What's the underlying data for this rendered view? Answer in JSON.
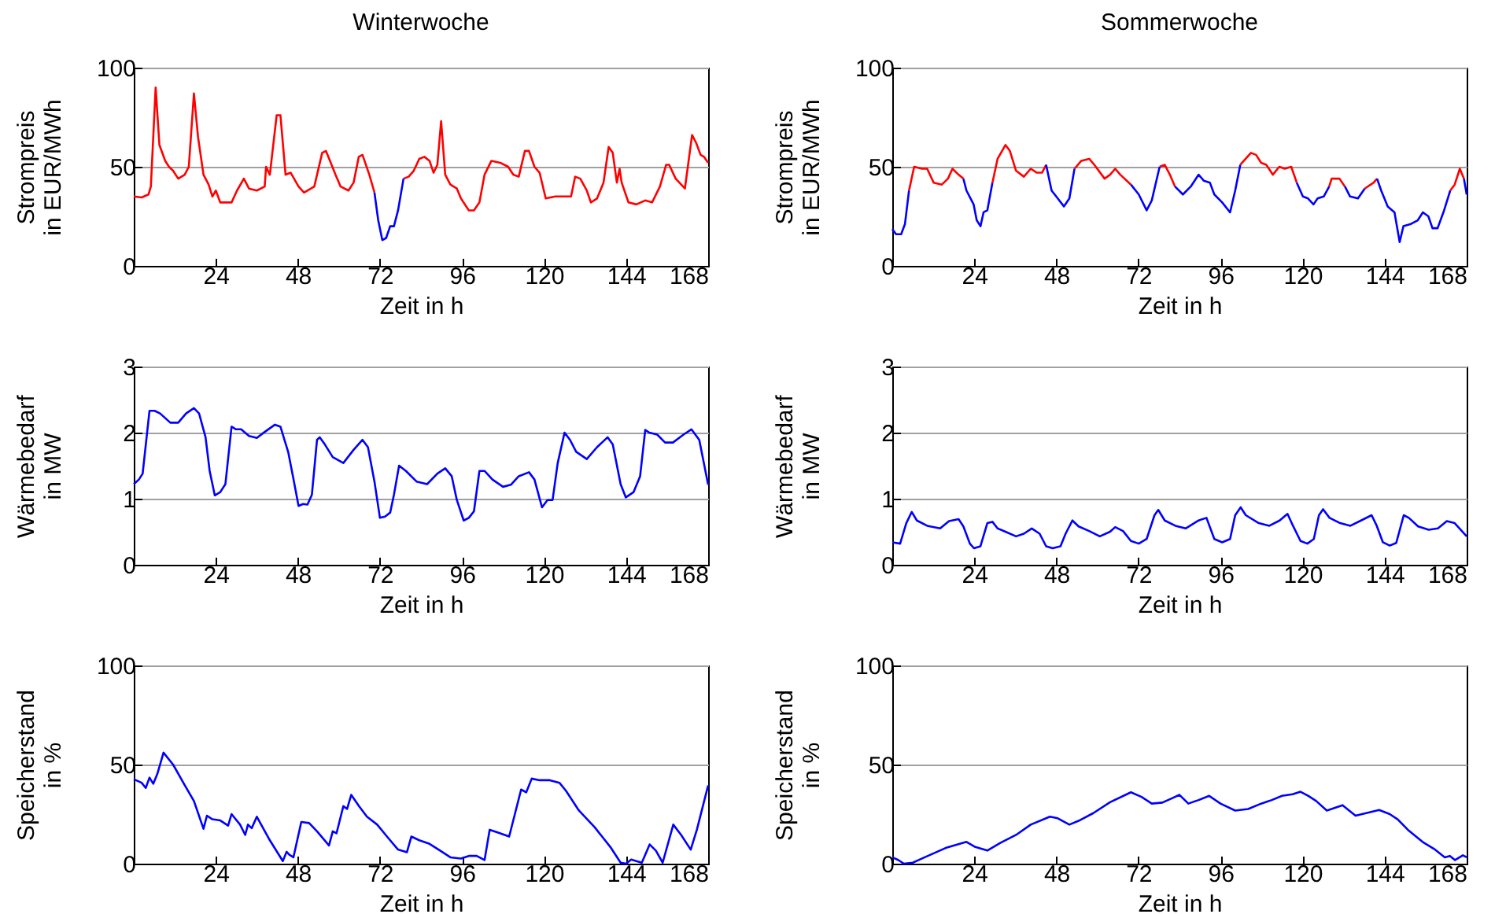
{
  "chart_data": [
    {
      "type": "line",
      "title": "Winterwoche",
      "xlabel": "Zeit in h",
      "ylabel": "Strompreis\nin EUR/MWh",
      "xlim": [
        0,
        168
      ],
      "xticks": [
        24,
        48,
        72,
        96,
        120,
        144,
        168
      ],
      "ylim": [
        0,
        100
      ],
      "yticks": [
        0,
        50,
        100
      ],
      "grid": "y",
      "x": [
        0,
        2.3,
        4.3,
        5,
        6.4,
        7.5,
        9.2,
        10.3,
        11.5,
        13,
        14.9,
        16.1,
        17.6,
        18.8,
        20.4,
        21.9,
        23,
        24,
        25.3,
        26.8,
        28.6,
        30.2,
        32.2,
        33.7,
        36,
        38.3,
        38.7,
        39.8,
        41.8,
        42.9,
        44.4,
        45.9,
        48.2,
        49.8,
        52.8,
        55.1,
        56.2,
        57.4,
        59,
        60.5,
        62.8,
        64.3,
        65.8,
        66.9,
        68.9,
        70.4,
        71.5,
        72.7,
        73.8,
        75,
        76.1,
        77.3,
        78.9,
        80.4,
        81.9,
        83.5,
        85,
        86.5,
        87.7,
        88.8,
        89.9,
        91.1,
        92.6,
        94.5,
        95.7,
        98,
        99.5,
        101.1,
        102.6,
        104.6,
        107.2,
        109.5,
        111,
        112.6,
        114.4,
        115.6,
        117.2,
        118.7,
        120.5,
        123.3,
        125.6,
        127.9,
        129.1,
        130.6,
        132.5,
        133.7,
        135.5,
        137.4,
        138.9,
        140.1,
        141.3,
        142.1,
        142.7,
        144.7,
        147,
        149.6,
        151.6,
        153.9,
        155.7,
        156.6,
        158.5,
        161.2,
        163.3,
        164.5,
        165.8,
        166.8,
        168
      ],
      "series": [
        {
          "color": "#0000ff",
          "values": [
            null,
            null,
            null,
            null,
            null,
            null,
            null,
            null,
            null,
            null,
            null,
            null,
            null,
            null,
            null,
            null,
            null,
            null,
            null,
            null,
            null,
            null,
            null,
            null,
            null,
            null,
            null,
            null,
            null,
            null,
            null,
            null,
            null,
            null,
            null,
            null,
            null,
            null,
            null,
            null,
            null,
            null,
            null,
            null,
            null,
            37,
            23,
            13,
            14,
            20,
            20,
            28,
            44,
            null,
            null,
            null,
            null,
            null,
            null,
            null,
            null,
            null,
            null,
            null,
            null,
            null,
            null,
            null,
            null,
            null,
            null,
            null,
            null,
            null,
            null,
            null,
            null,
            null,
            null,
            null,
            null,
            null,
            null,
            null,
            null,
            null,
            null,
            null,
            null,
            null,
            null,
            null,
            null,
            null,
            null,
            null,
            null,
            null,
            null,
            null,
            null,
            null,
            null,
            null,
            null,
            null,
            null
          ]
        },
        {
          "color": "#ff0000",
          "values": [
            35,
            34.5,
            36,
            40,
            90,
            61,
            53,
            50,
            48,
            44,
            46,
            50,
            87,
            65,
            46,
            41,
            35,
            38,
            32,
            32,
            32,
            38,
            44,
            39,
            38,
            40,
            50,
            46,
            76,
            76,
            46,
            47,
            40,
            37,
            40,
            57,
            58,
            53,
            46,
            40,
            38,
            42,
            55,
            56,
            46,
            37,
            null,
            null,
            null,
            null,
            null,
            null,
            44,
            45,
            48,
            54,
            55,
            53,
            47,
            51,
            73,
            46,
            41,
            39,
            34,
            28,
            28,
            32,
            46,
            53,
            52,
            50,
            46,
            45,
            58,
            58,
            50,
            47,
            34,
            35,
            35,
            35,
            45,
            44,
            38,
            32,
            34,
            42,
            60,
            57,
            42,
            49,
            42,
            32,
            31,
            33,
            32,
            40,
            51,
            51,
            44,
            39,
            66,
            62,
            56,
            55,
            52
          ]
        }
      ]
    },
    {
      "type": "line",
      "title": "Sommerwoche",
      "xlabel": "Zeit in h",
      "ylabel": "Strompreis\nin EUR/MWh",
      "xlim": [
        0,
        168
      ],
      "xticks": [
        24,
        48,
        72,
        96,
        120,
        144,
        168
      ],
      "ylim": [
        0,
        100
      ],
      "yticks": [
        0,
        50,
        100
      ],
      "grid": "y",
      "x": [
        0,
        1.1,
        2.6,
        3.7,
        4.9,
        6.4,
        8.7,
        10.2,
        12.1,
        14.5,
        16.3,
        17.6,
        19.4,
        20.8,
        21.7,
        23.2,
        23.8,
        24.7,
        25.8,
        26.7,
        27.8,
        29.3,
        30.8,
        33.1,
        34.4,
        36.2,
        38.5,
        40.5,
        42.3,
        43.8,
        45,
        46.6,
        48.4,
        50.2,
        51.8,
        53.3,
        55.3,
        57.6,
        59.1,
        62.1,
        63.7,
        65.2,
        66.7,
        69.8,
        72.1,
        74.4,
        75.9,
        78.2,
        79.7,
        81.2,
        82.7,
        85,
        87.3,
        89.6,
        91.1,
        92.9,
        94.2,
        96.5,
        98.8,
        100.3,
        101.8,
        104.9,
        106.4,
        107.9,
        109.4,
        111.3,
        113.2,
        114.8,
        116.7,
        118.3,
        120.1,
        121.6,
        123.2,
        124.4,
        126.2,
        127.8,
        128.5,
        130.8,
        132.4,
        133.9,
        136.2,
        138.2,
        140.8,
        141.8,
        143,
        144.9,
        146.9,
        148.4,
        149.5,
        151.5,
        153.7,
        155.2,
        156.8,
        158,
        159.5,
        161.4,
        163.2,
        164.5,
        166,
        167.2,
        168
      ],
      "series": [
        {
          "color": "#0000ff",
          "values": [
            18.6,
            16,
            16,
            21,
            38,
            null,
            null,
            null,
            null,
            null,
            null,
            null,
            null,
            44,
            38,
            33,
            31,
            23,
            20,
            27,
            28,
            42,
            null,
            null,
            null,
            null,
            null,
            null,
            null,
            null,
            51,
            38,
            34,
            30,
            34,
            49,
            null,
            null,
            null,
            null,
            null,
            null,
            null,
            41,
            36,
            28,
            33,
            50,
            null,
            null,
            40,
            36,
            40,
            46,
            43,
            42,
            36,
            32,
            27,
            38,
            51,
            null,
            null,
            null,
            null,
            null,
            null,
            null,
            null,
            42,
            35,
            34,
            31,
            34,
            35,
            40,
            null,
            null,
            40,
            35,
            34,
            39,
            null,
            44,
            38,
            30,
            27,
            12,
            20,
            21,
            23,
            27,
            25,
            19,
            19,
            28,
            38,
            null,
            null,
            44,
            36
          ]
        },
        {
          "color": "#ff0000",
          "values": [
            null,
            null,
            null,
            null,
            38,
            50,
            49,
            49,
            42,
            41,
            44,
            49,
            46,
            44,
            null,
            null,
            null,
            null,
            null,
            null,
            null,
            42,
            54,
            61,
            58,
            48,
            45,
            49,
            47,
            47,
            51,
            null,
            null,
            null,
            null,
            49,
            53,
            54,
            51,
            44,
            46,
            49,
            46,
            41,
            null,
            null,
            null,
            50,
            51,
            46,
            40,
            null,
            null,
            null,
            null,
            null,
            null,
            null,
            null,
            null,
            51,
            57,
            56,
            52,
            51,
            46,
            50,
            49,
            50,
            42,
            null,
            null,
            null,
            null,
            null,
            40,
            44,
            44,
            40,
            null,
            null,
            39,
            42,
            44,
            null,
            null,
            null,
            null,
            null,
            null,
            null,
            null,
            null,
            null,
            null,
            null,
            38,
            41,
            49,
            44,
            null
          ]
        }
      ]
    },
    {
      "type": "line",
      "xlabel": "Zeit in h",
      "ylabel": "Wärmebedarf\nin MW",
      "xlim": [
        0,
        168
      ],
      "xticks": [
        24,
        48,
        72,
        96,
        120,
        144,
        168
      ],
      "ylim": [
        0,
        3
      ],
      "yticks": [
        0,
        1,
        2,
        3
      ],
      "grid": "y",
      "x": [
        0,
        1.5,
        2.6,
        4.6,
        6.1,
        7.7,
        10.7,
        13,
        15.3,
        17.6,
        19.1,
        21,
        22.2,
        23.7,
        25.3,
        26.8,
        28.6,
        29.9,
        31.4,
        33.7,
        36,
        38.3,
        41.3,
        42.9,
        45.2,
        46.7,
        48.2,
        49.5,
        50.8,
        52.1,
        53.6,
        54.4,
        55.9,
        58.2,
        61.3,
        64.3,
        66.9,
        68.5,
        70.4,
        72,
        73.5,
        75,
        76.1,
        77.6,
        79.6,
        82.7,
        85.8,
        88.8,
        91.1,
        93,
        94.5,
        96.5,
        98,
        99.5,
        101.1,
        102.6,
        104.9,
        108,
        110.3,
        112.6,
        115.6,
        117.2,
        119.4,
        121,
        122.5,
        124,
        126,
        127.6,
        129.4,
        132.5,
        135.5,
        138.6,
        140.1,
        142.4,
        143.9,
        146.2,
        148.1,
        149.6,
        150.8,
        153.1,
        155.4,
        157.7,
        160.8,
        163.1,
        165.4,
        168
      ],
      "series": [
        {
          "color": "#0000ff",
          "values": [
            1.22,
            1.29,
            1.38,
            2.33,
            2.33,
            2.29,
            2.15,
            2.15,
            2.29,
            2.37,
            2.29,
            1.93,
            1.42,
            1.05,
            1.1,
            1.22,
            2.09,
            2.05,
            2.05,
            1.95,
            1.92,
            2.01,
            2.12,
            2.09,
            1.7,
            1.3,
            0.89,
            0.92,
            0.91,
            1.06,
            1.89,
            1.93,
            1.82,
            1.63,
            1.54,
            1.74,
            1.89,
            1.78,
            1.26,
            0.71,
            0.73,
            0.79,
            1.06,
            1.5,
            1.42,
            1.26,
            1.22,
            1.38,
            1.46,
            1.34,
            0.98,
            0.67,
            0.71,
            0.81,
            1.42,
            1.42,
            1.29,
            1.18,
            1.21,
            1.34,
            1.4,
            1.29,
            0.87,
            0.98,
            0.98,
            1.54,
            2,
            1.89,
            1.71,
            1.6,
            1.78,
            1.93,
            1.82,
            1.22,
            1.02,
            1.1,
            1.34,
            2.04,
            2,
            1.97,
            1.85,
            1.85,
            1.97,
            2.05,
            1.89,
            1.21
          ]
        }
      ]
    },
    {
      "type": "line",
      "xlabel": "Zeit in h",
      "ylabel": "Wärmebedarf\nin MW",
      "xlim": [
        0,
        168
      ],
      "xticks": [
        24,
        48,
        72,
        96,
        120,
        144,
        168
      ],
      "ylim": [
        0,
        3
      ],
      "yticks": [
        0,
        1,
        2,
        3
      ],
      "grid": "y",
      "x": [
        0,
        2.3,
        4.1,
        5.7,
        7.2,
        10.2,
        14,
        16.6,
        19.4,
        20.8,
        22.7,
        23.9,
        25.8,
        27.8,
        29.3,
        30.8,
        33.1,
        36.2,
        38.5,
        40.8,
        43.1,
        45,
        46.9,
        49.2,
        50.7,
        52.7,
        54.5,
        57.6,
        60.7,
        63.7,
        65.2,
        67.5,
        69.8,
        72.1,
        74.4,
        76.7,
        77.8,
        79.7,
        82.8,
        85.8,
        89.6,
        91.9,
        94.2,
        96.5,
        98.8,
        100.3,
        101.9,
        103.4,
        107.2,
        110.3,
        113.3,
        115.6,
        117.2,
        119.4,
        121.4,
        123.3,
        124.8,
        126,
        127.9,
        131,
        134,
        137.1,
        140.2,
        141.7,
        143.5,
        145.5,
        147.4,
        149.6,
        151.1,
        153.8,
        156.9,
        159.6,
        162.2,
        164.5,
        168
      ],
      "series": [
        {
          "color": "#0000ff",
          "values": [
            0.34,
            0.32,
            0.63,
            0.8,
            0.67,
            0.59,
            0.55,
            0.66,
            0.69,
            0.58,
            0.32,
            0.25,
            0.28,
            0.63,
            0.65,
            0.55,
            0.5,
            0.43,
            0.47,
            0.55,
            0.47,
            0.28,
            0.25,
            0.28,
            0.47,
            0.67,
            0.58,
            0.51,
            0.43,
            0.5,
            0.57,
            0.51,
            0.36,
            0.32,
            0.39,
            0.75,
            0.83,
            0.67,
            0.59,
            0.55,
            0.67,
            0.71,
            0.39,
            0.34,
            0.39,
            0.75,
            0.87,
            0.75,
            0.63,
            0.59,
            0.67,
            0.77,
            0.59,
            0.36,
            0.32,
            0.39,
            0.75,
            0.84,
            0.71,
            0.63,
            0.59,
            0.67,
            0.75,
            0.59,
            0.34,
            0.29,
            0.33,
            0.75,
            0.71,
            0.58,
            0.53,
            0.55,
            0.66,
            0.63,
            0.43
          ]
        }
      ]
    },
    {
      "type": "line",
      "xlabel": "Zeit in h",
      "ylabel": "Speicherstand\nin %",
      "xlim": [
        0,
        168
      ],
      "xticks": [
        24,
        48,
        72,
        96,
        120,
        144,
        168
      ],
      "ylim": [
        0,
        100
      ],
      "yticks": [
        0,
        50,
        100
      ],
      "grid": "y",
      "x": [
        0,
        2.3,
        3.5,
        4.6,
        5.7,
        6.9,
        8.7,
        11.5,
        14.5,
        17.6,
        20.4,
        21.4,
        23,
        25.3,
        27.6,
        28.6,
        31.1,
        32.6,
        33.4,
        34.5,
        36,
        39.8,
        43.6,
        44.7,
        45.5,
        46.7,
        49,
        51.3,
        53.6,
        57.1,
        58.2,
        59.3,
        61.3,
        62.4,
        63.6,
        65.9,
        68.2,
        71.2,
        74.3,
        77.3,
        79.9,
        81.2,
        83.5,
        86.5,
        89.6,
        92.6,
        95.7,
        98,
        100.3,
        102.6,
        104.1,
        106.4,
        109.8,
        113.3,
        114.8,
        116.4,
        118.7,
        121.7,
        124.5,
        126.4,
        130.2,
        134.8,
        139.4,
        142.4,
        144,
        145.5,
        147,
        148.6,
        150.9,
        152.7,
        154.7,
        157.8,
        160.1,
        162.9,
        164.7,
        168
      ],
      "series": [
        {
          "color": "#0000ff",
          "values": [
            42.6,
            40.8,
            38.2,
            43.4,
            40.3,
            45.3,
            56,
            50,
            40.8,
            31.6,
            17.6,
            24.2,
            22.4,
            21.8,
            19.2,
            25,
            19.7,
            14.5,
            19.7,
            17.9,
            23.7,
            11.8,
            1.3,
            6,
            4.5,
            3.2,
            21,
            20.5,
            16.3,
            9.2,
            16.3,
            15.3,
            29,
            27.6,
            34.7,
            29,
            23.7,
            19.7,
            13.2,
            7.1,
            5.8,
            13.7,
            11.8,
            10,
            6.6,
            3.2,
            2.6,
            3.9,
            3.9,
            1.8,
            17.1,
            15.8,
            13.7,
            37.4,
            36,
            42.9,
            42.1,
            42.1,
            40.8,
            36.8,
            26.8,
            18.4,
            8.4,
            0.5,
            0,
            2.1,
            1.3,
            0.5,
            9.7,
            6.6,
            0.5,
            19.7,
            14.5,
            7.1,
            17.1,
            39.5
          ]
        }
      ]
    },
    {
      "type": "line",
      "xlabel": "Zeit in h",
      "ylabel": "Speicherstand\nin %",
      "xlim": [
        0,
        168
      ],
      "xticks": [
        24,
        48,
        72,
        96,
        120,
        144,
        168
      ],
      "ylim": [
        0,
        100
      ],
      "yticks": [
        0,
        50,
        100
      ],
      "grid": "y",
      "x": [
        0,
        1.8,
        3.4,
        6,
        9.5,
        15.6,
        21.7,
        24.3,
        27.8,
        31.6,
        36.2,
        40.5,
        46.1,
        48.4,
        51.8,
        54.5,
        58.8,
        63.7,
        69.8,
        72.9,
        75.9,
        79,
        81.7,
        84,
        86.6,
        89.6,
        92.7,
        96,
        100.3,
        104.1,
        107.9,
        111,
        114,
        117.1,
        119.4,
        121.7,
        124,
        127.1,
        131.7,
        135.5,
        138.6,
        142.4,
        145.5,
        147.8,
        150.8,
        155.1,
        158.5,
        161.6,
        163.1,
        164.6,
        166.9,
        168
      ],
      "series": [
        {
          "color": "#0000ff",
          "values": [
            3.2,
            1.8,
            0,
            0.5,
            3.2,
            7.9,
            11,
            8.4,
            6.6,
            10.5,
            14.5,
            19.7,
            23.7,
            22.9,
            19.7,
            21.6,
            25.5,
            31,
            36,
            33.7,
            30.3,
            30.8,
            32.9,
            34.7,
            30.3,
            32.1,
            34.2,
            30.3,
            26.8,
            27.6,
            30.3,
            32.1,
            34.2,
            35,
            36.3,
            34.2,
            31.6,
            26.8,
            29.5,
            24.2,
            25.5,
            27.1,
            25,
            22.4,
            17.1,
            11,
            7.4,
            3.2,
            3.9,
            1.8,
            4.2,
            3.2
          ]
        }
      ]
    }
  ]
}
